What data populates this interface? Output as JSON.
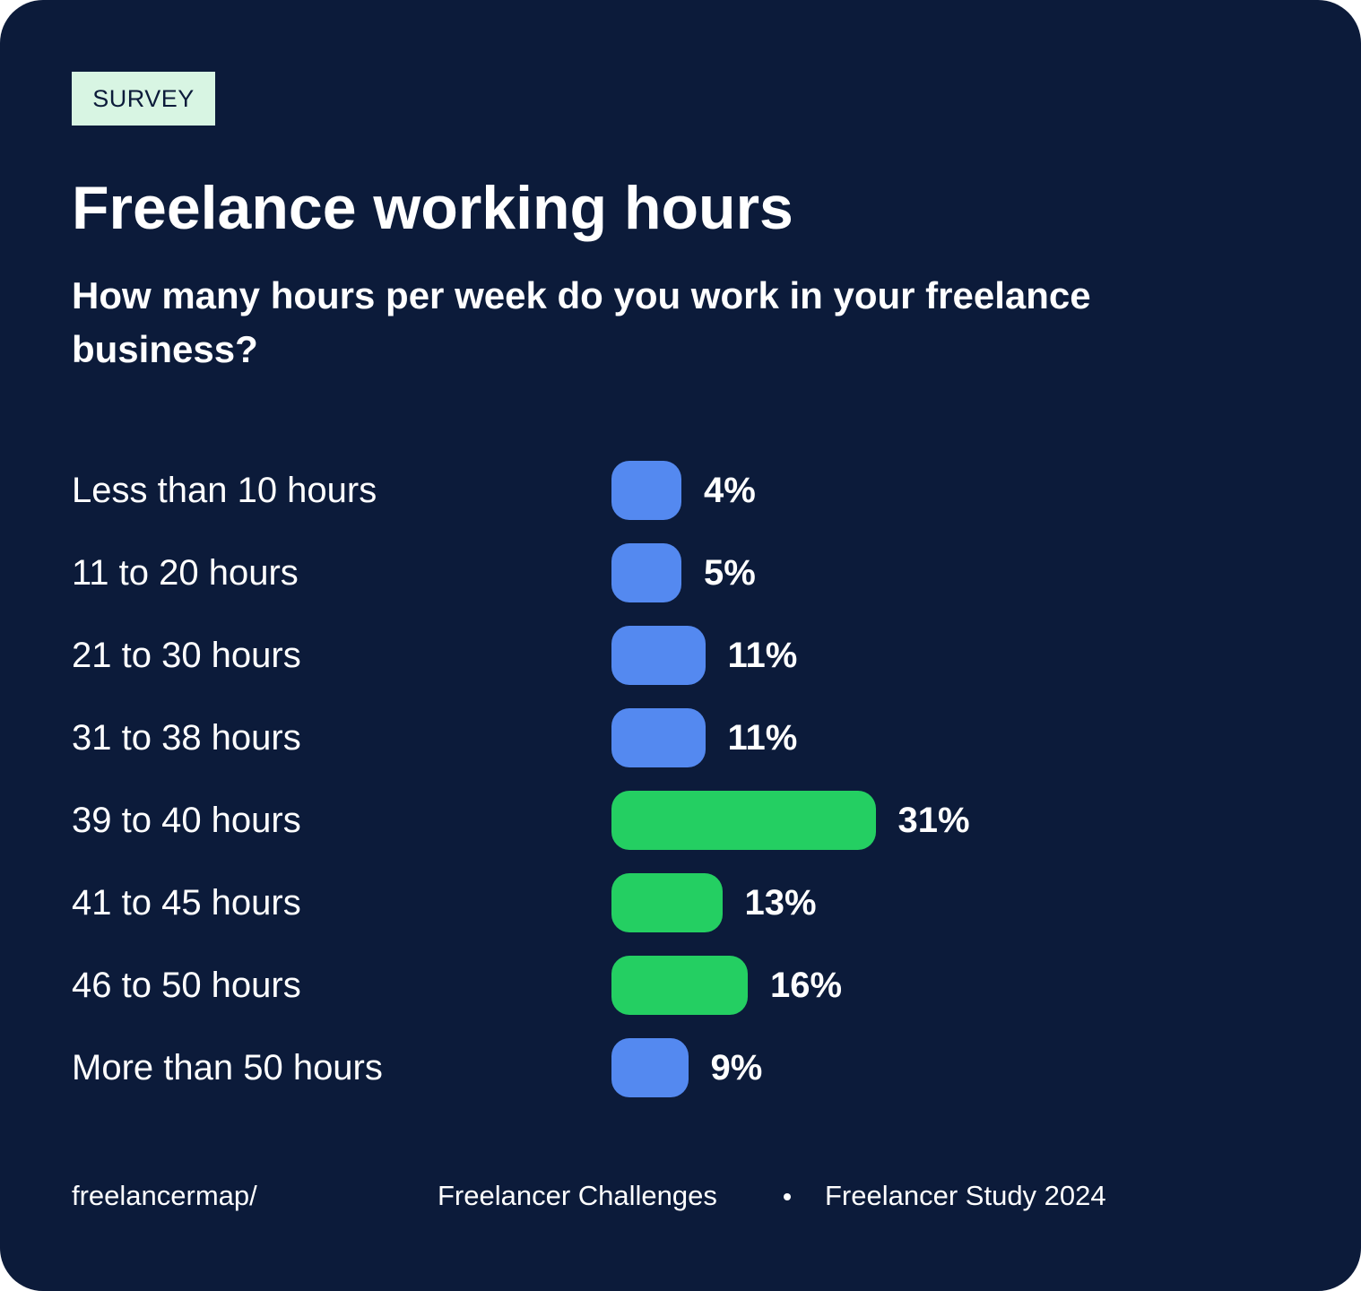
{
  "badge": "SURVEY",
  "colors": {
    "background": "#0c1b3a",
    "badge_bg": "#d8f5e3",
    "bar_blue": "#5489f0",
    "bar_green": "#24cf62",
    "text": "#ffffff"
  },
  "chart_data": {
    "type": "bar",
    "orientation": "horizontal",
    "title": "Freelance working hours",
    "subtitle": "How many hours per week do you work in your freelance business?",
    "categories": [
      "Less than 10 hours",
      "11 to 20 hours",
      "21 to 30 hours",
      "31 to 38 hours",
      "39 to 40 hours",
      "41 to 45 hours",
      "46 to 50 hours",
      "More than 50 hours"
    ],
    "values": [
      4,
      5,
      11,
      11,
      31,
      13,
      16,
      9
    ],
    "value_labels": [
      "4%",
      "5%",
      "11%",
      "11%",
      "31%",
      "13%",
      "16%",
      "9%"
    ],
    "bar_colors": [
      "#5489f0",
      "#5489f0",
      "#5489f0",
      "#5489f0",
      "#24cf62",
      "#24cf62",
      "#24cf62",
      "#5489f0"
    ],
    "unit": "%",
    "grid": false,
    "legend": "none"
  },
  "footer": {
    "brand": "freelancermap/",
    "series": "Freelancer Challenges",
    "study": "Freelancer Study 2024"
  }
}
